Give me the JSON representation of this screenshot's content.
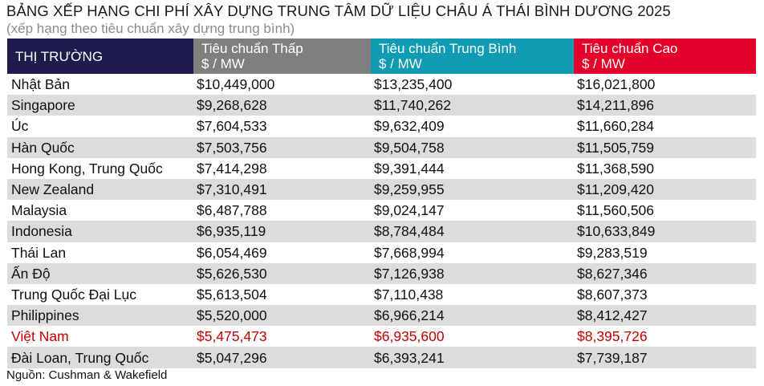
{
  "title": "BẢNG XẾP HẠNG CHI PHÍ XÂY DỰNG TRUNG TÂM DỮ LIỆU CHÂU Á THÁI BÌNH DƯƠNG 2025",
  "subtitle": "(xếp hạng theo tiêu chuẩn xây dựng trung bình)",
  "colors": {
    "market_header": "#1f1b4d",
    "low_header": "#7f7f7f",
    "mid_header": "#0e9bb3",
    "high_header": "#e4002b",
    "highlight_text": "#c00000",
    "stripe": "#dcdcdc"
  },
  "table": {
    "headers": [
      {
        "label": "THỊ TRƯỜNG",
        "unit": ""
      },
      {
        "label": "Tiêu chuẩn Thấp",
        "unit": "$ / MW"
      },
      {
        "label": "Tiêu chuẩn Trung Bình",
        "unit": "$ / MW"
      },
      {
        "label": "Tiêu chuẩn Cao",
        "unit": "$ / MW"
      }
    ],
    "rows": [
      {
        "market": "Nhật Bản",
        "low": "$10,449,000",
        "mid": "$13,235,400",
        "high": "$16,021,800",
        "highlight": false
      },
      {
        "market": "Singapore",
        "low": "$9,268,628",
        "mid": "$11,740,262",
        "high": "$14,211,896",
        "highlight": false
      },
      {
        "market": "Úc",
        "low": "$7,604,533",
        "mid": "$9,632,409",
        "high": "$11,660,284",
        "highlight": false
      },
      {
        "market": "Hàn Quốc",
        "low": "$7,503,756",
        "mid": "$9,504,758",
        "high": "$11,505,759",
        "highlight": false
      },
      {
        "market": "Hong Kong, Trung Quốc",
        "low": "$7,414,298",
        "mid": "$9,391,444",
        "high": "$11,368,590",
        "highlight": false
      },
      {
        "market": "New Zealand",
        "low": "$7,310,491",
        "mid": "$9,259,955",
        "high": "$11,209,420",
        "highlight": false
      },
      {
        "market": "Malaysia",
        "low": "$6,487,788",
        "mid": "$9,024,147",
        "high": "$11,560,506",
        "highlight": false
      },
      {
        "market": "Indonesia",
        "low": "$6,935,119",
        "mid": "$8,784,484",
        "high": "$10,633,849",
        "highlight": false
      },
      {
        "market": "Thái Lan",
        "low": "$6,054,469",
        "mid": "$7,668,994",
        "high": "$9,283,519",
        "highlight": false
      },
      {
        "market": "Ấn Độ",
        "low": "$5,626,530",
        "mid": "$7,126,938",
        "high": "$8,627,346",
        "highlight": false
      },
      {
        "market": "Trung Quốc Đại Lục",
        "low": "$5,613,504",
        "mid": "$7,110,438",
        "high": "$8,607,373",
        "highlight": false
      },
      {
        "market": "Philippines",
        "low": "$5,520,000",
        "mid": "$6,966,214",
        "high": "$8,412,427",
        "highlight": false
      },
      {
        "market": "Việt Nam",
        "low": "$5,475,473",
        "mid": "$6,935,600",
        "high": "$8,395,726",
        "highlight": true
      },
      {
        "market": "Đài Loan, Trung Quốc",
        "low": "$5,047,296",
        "mid": "$6,393,241",
        "high": "$7,739,187",
        "highlight": false
      }
    ]
  },
  "source": "Nguồn: Cushman & Wakefield"
}
